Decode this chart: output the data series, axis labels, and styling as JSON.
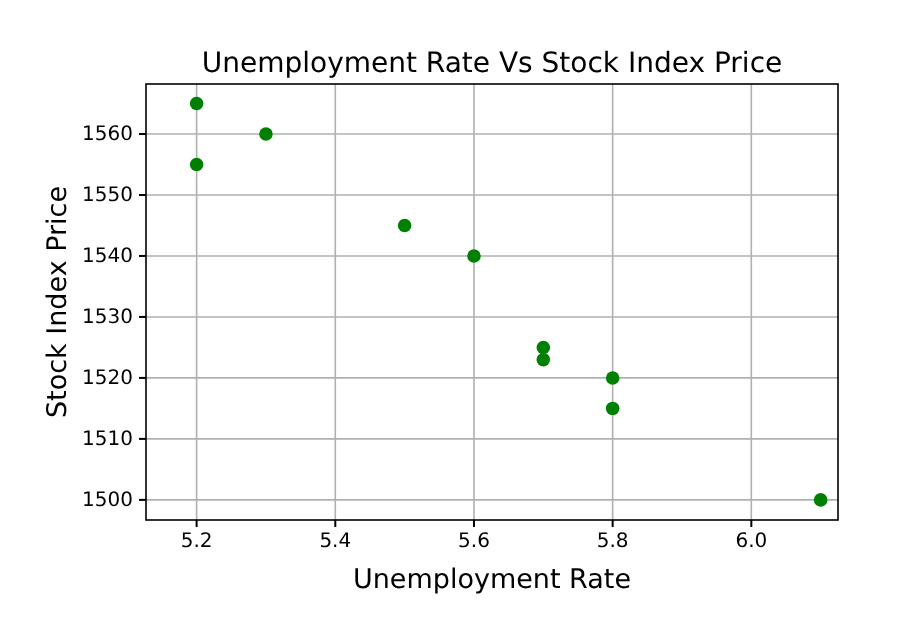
{
  "chart_data": {
    "type": "scatter",
    "title": "Unemployment Rate Vs Stock Index Price",
    "xlabel": "Unemployment Rate",
    "ylabel": "Stock Index Price",
    "x": [
      5.2,
      5.2,
      5.3,
      5.5,
      5.6,
      5.7,
      5.7,
      5.8,
      5.8,
      6.1
    ],
    "series": [
      {
        "color": "#008000",
        "values": [
          1565,
          1555,
          1560,
          1545,
          1540,
          1525,
          1523,
          1520,
          1515,
          1500
        ]
      }
    ],
    "xlim": [
      5.127,
      6.125
    ],
    "xticks": [
      {
        "value": 5.2,
        "label": "5.2"
      },
      {
        "value": 5.4,
        "label": "5.4"
      },
      {
        "value": 5.6,
        "label": "5.6"
      },
      {
        "value": 5.8,
        "label": "5.8"
      },
      {
        "value": 6.0,
        "label": "6.0"
      }
    ],
    "ylim": [
      1496.7,
      1568.2
    ],
    "yticks": [
      1500,
      1510,
      1520,
      1530,
      1540,
      1550,
      1560
    ],
    "grid": true,
    "marker": "circle"
  }
}
